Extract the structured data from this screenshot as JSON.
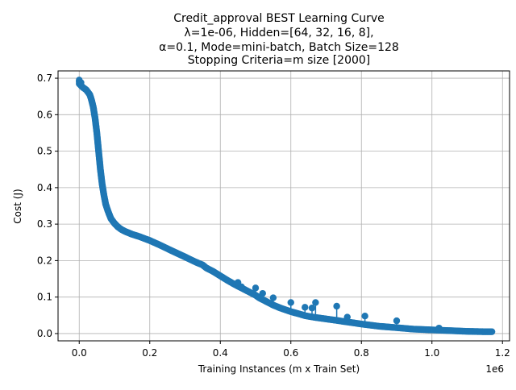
{
  "chart_data": {
    "type": "scatter",
    "title_lines": [
      "Credit_approval BEST Learning Curve",
      "λ=1e-06,  Hidden=[64, 32, 16, 8],",
      "α=0.1, Mode=mini-batch, Batch Size=128",
      "Stopping Criteria=m size [2000]"
    ],
    "xlabel": "Training Instances (m x Train Set)",
    "ylabel": "Cost (J)",
    "x_offset_label": "1e6",
    "xlim": [
      -0.06,
      1.22
    ],
    "ylim": [
      -0.02,
      0.72
    ],
    "x_ticks": [
      0.0,
      0.2,
      0.4,
      0.6,
      0.8,
      1.0,
      1.2
    ],
    "x_tick_labels": [
      "0.0",
      "0.2",
      "0.4",
      "0.6",
      "0.8",
      "1.0",
      "1.2"
    ],
    "y_ticks": [
      0.0,
      0.1,
      0.2,
      0.3,
      0.4,
      0.5,
      0.6,
      0.7
    ],
    "y_tick_labels": [
      "0.0",
      "0.1",
      "0.2",
      "0.3",
      "0.4",
      "0.5",
      "0.6",
      "0.7"
    ],
    "grid": true,
    "color": "#1f77b4",
    "series": [
      {
        "x": [
          0.0,
          0.01,
          0.02,
          0.03,
          0.035,
          0.04,
          0.045,
          0.05,
          0.055,
          0.06,
          0.065,
          0.07,
          0.075,
          0.08,
          0.085,
          0.09,
          0.1,
          0.11,
          0.12,
          0.13,
          0.14,
          0.15,
          0.17,
          0.2,
          0.23,
          0.26,
          0.3,
          0.33,
          0.35,
          0.36,
          0.38,
          0.4,
          0.42,
          0.44,
          0.45,
          0.47,
          0.5,
          0.51,
          0.53,
          0.55,
          0.57,
          0.6,
          0.63,
          0.64,
          0.67,
          0.7,
          0.73,
          0.75,
          0.78,
          0.8,
          0.85,
          0.9,
          0.95,
          1.0,
          1.05,
          1.1,
          1.15,
          1.17
        ],
        "y": [
          0.685,
          0.675,
          0.668,
          0.655,
          0.64,
          0.62,
          0.59,
          0.55,
          0.5,
          0.45,
          0.41,
          0.38,
          0.355,
          0.34,
          0.327,
          0.315,
          0.302,
          0.292,
          0.285,
          0.28,
          0.276,
          0.272,
          0.266,
          0.255,
          0.242,
          0.228,
          0.21,
          0.196,
          0.188,
          0.18,
          0.17,
          0.158,
          0.146,
          0.135,
          0.13,
          0.12,
          0.105,
          0.098,
          0.088,
          0.078,
          0.07,
          0.06,
          0.052,
          0.049,
          0.044,
          0.04,
          0.036,
          0.033,
          0.029,
          0.026,
          0.02,
          0.016,
          0.012,
          0.01,
          0.008,
          0.006,
          0.005,
          0.005
        ],
        "outliers_x": [
          0.0,
          0.0,
          0.005,
          0.45,
          0.46,
          0.5,
          0.52,
          0.55,
          0.6,
          0.64,
          0.66,
          0.67,
          0.73,
          0.76,
          0.81,
          0.9,
          1.02
        ],
        "outliers_y": [
          0.695,
          0.69,
          0.688,
          0.14,
          0.128,
          0.125,
          0.11,
          0.098,
          0.085,
          0.072,
          0.07,
          0.085,
          0.075,
          0.045,
          0.048,
          0.035,
          0.015
        ]
      }
    ]
  }
}
